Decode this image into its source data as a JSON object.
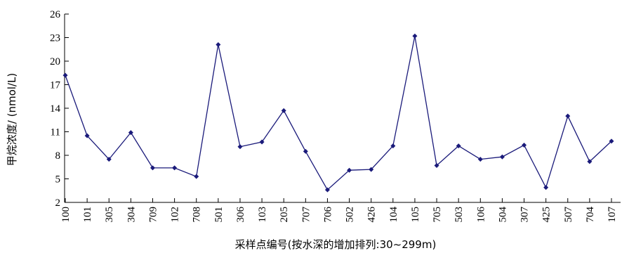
{
  "chart_data": {
    "type": "line",
    "title": "",
    "xlabel": "采样点编号(按水深的增加排列:30~299m)",
    "ylabel": "甲烷浓度/ (nmol/L)",
    "ylim": [
      2,
      26
    ],
    "yticks": [
      "2",
      "5",
      "8",
      "11",
      "14",
      "17",
      "20",
      "23",
      "26"
    ],
    "grid": false,
    "categories": [
      "100",
      "101",
      "305",
      "304",
      "709",
      "102",
      "708",
      "501",
      "306",
      "103",
      "205",
      "707",
      "706",
      "502",
      "426",
      "104",
      "105",
      "705",
      "503",
      "106",
      "504",
      "307",
      "425",
      "507",
      "704",
      "107"
    ],
    "series": [
      {
        "color": "#1a1a7a",
        "marker": "diamond",
        "values": [
          18.2,
          10.5,
          7.5,
          10.9,
          6.4,
          6.4,
          5.3,
          22.1,
          9.1,
          9.7,
          13.7,
          8.5,
          3.6,
          6.1,
          6.2,
          9.2,
          23.2,
          6.7,
          9.2,
          7.5,
          7.8,
          9.3,
          3.9,
          13.0,
          7.2,
          9.8
        ]
      }
    ]
  }
}
